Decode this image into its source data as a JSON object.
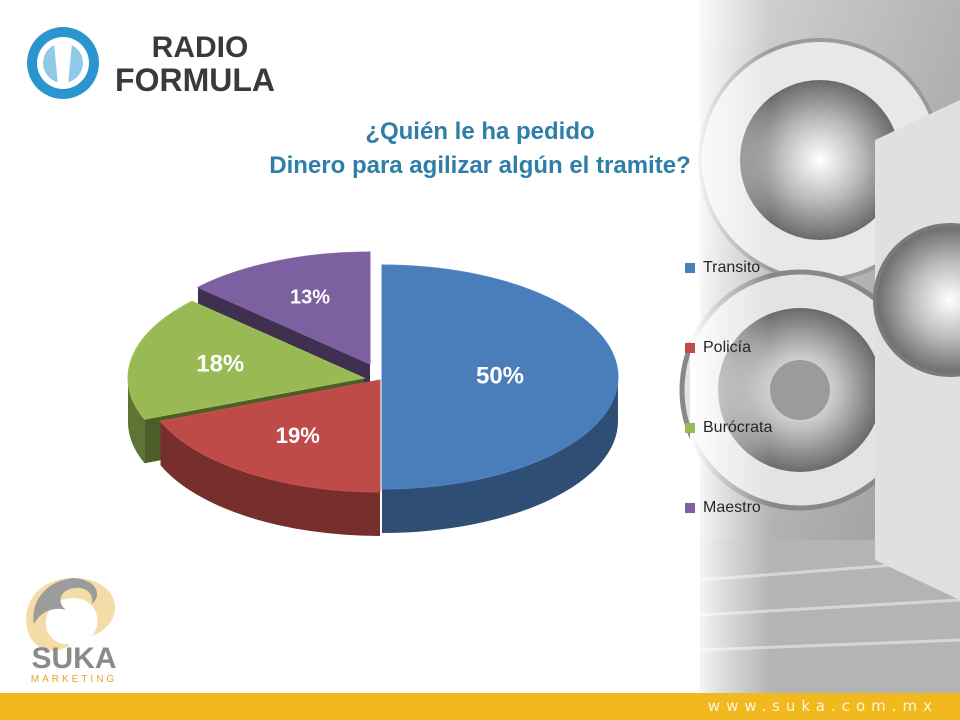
{
  "brand": {
    "radio_logo_line1": "RADIO",
    "radio_logo_line2": "FORMULA",
    "suka_logo_word": "SUKA",
    "suka_logo_sub": "MARKETING",
    "website": "www.suka.com.mx",
    "band_color": "#f1b91e"
  },
  "chart_data": {
    "type": "pie",
    "title_line1": "¿Quién le ha pedido",
    "title_line2": "Dinero para agilizar algún el tramite?",
    "legend_position": "right",
    "slices": [
      {
        "label": "Transito",
        "value": 50,
        "label_text": "50%",
        "color": "#4a7ebb"
      },
      {
        "label": "Policía",
        "value": 19,
        "label_text": "19%",
        "color": "#be4b48"
      },
      {
        "label": "Burócrata",
        "value": 18,
        "label_text": "18%",
        "color": "#98b954"
      },
      {
        "label": "Maestro",
        "value": 13,
        "label_text": "13%",
        "color": "#7d60a0"
      }
    ]
  }
}
